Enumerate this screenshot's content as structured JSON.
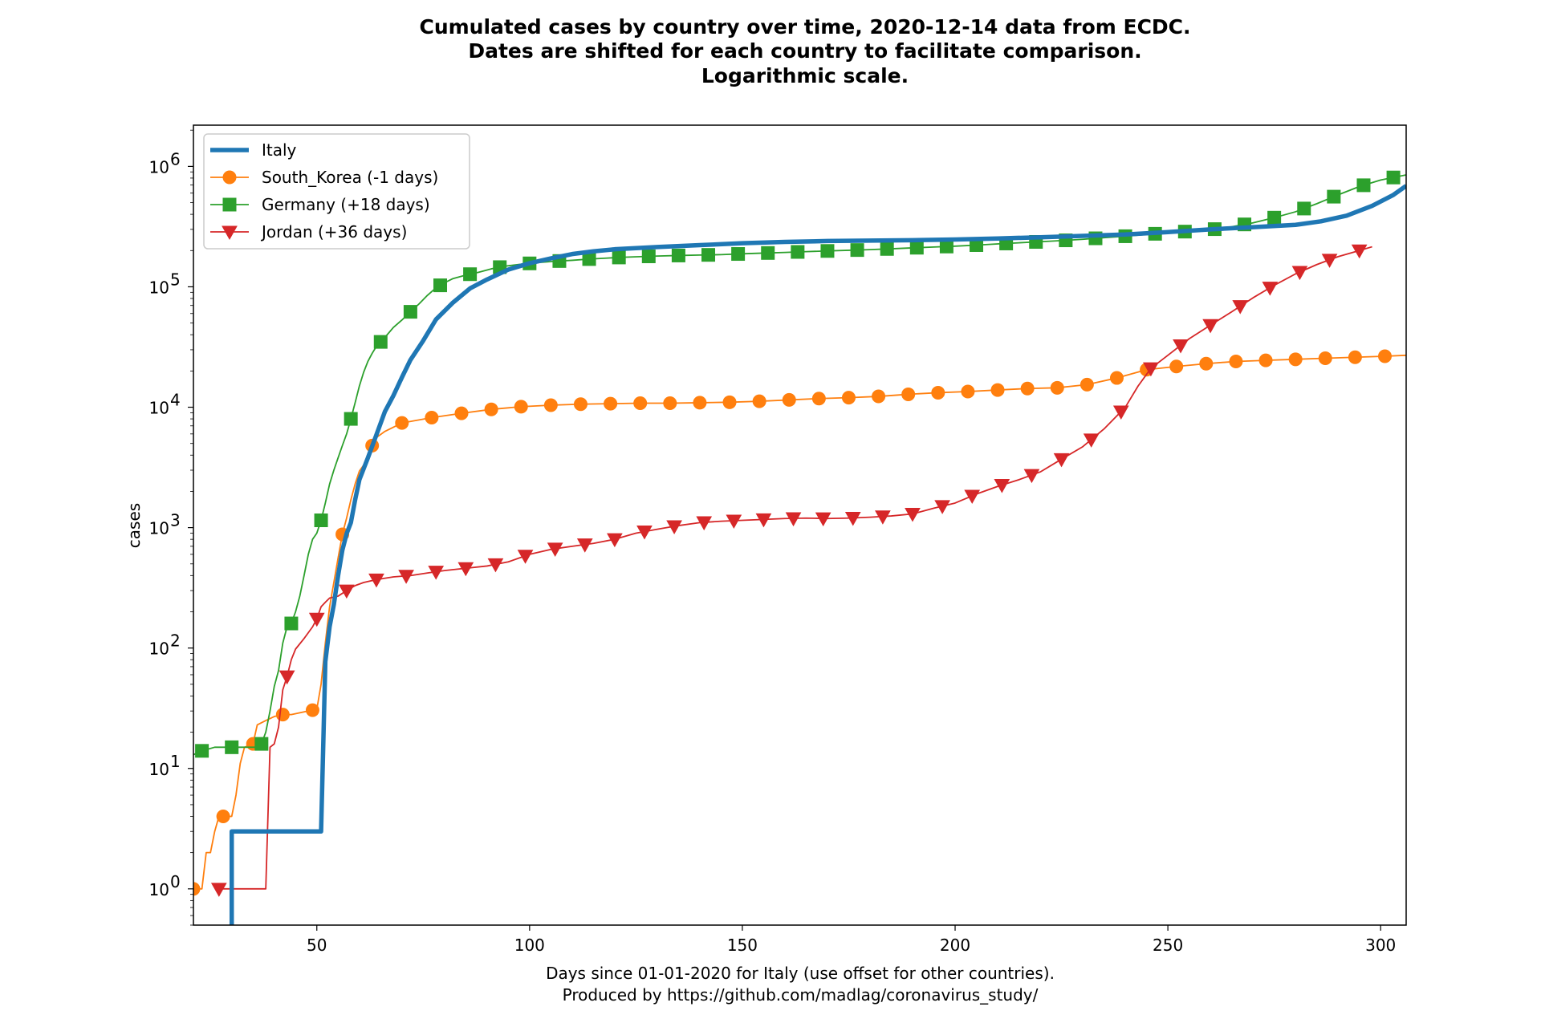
{
  "chart_data": {
    "type": "line",
    "title_lines": [
      "Cumulated cases by country over time, 2020-12-14 data from ECDC.",
      "Dates are shifted for each country to facilitate comparison.",
      "Logarithmic scale."
    ],
    "xlabel_lines": [
      "Days since 01-01-2020 for Italy (use offset for other countries).",
      "Produced by https://github.com/madlag/coronavirus_study/"
    ],
    "ylabel": "cases",
    "yscale": "log",
    "xlim": [
      21,
      306
    ],
    "ylim": [
      0.5,
      2200000
    ],
    "x_ticks": [
      50,
      100,
      150,
      200,
      250,
      300
    ],
    "x_tick_labels": [
      "50",
      "100",
      "150",
      "200",
      "250",
      "300"
    ],
    "y_ticks": [
      1,
      10,
      100,
      1000,
      10000,
      100000,
      1000000
    ],
    "y_tick_exponents": [
      "0",
      "1",
      "2",
      "3",
      "4",
      "5",
      "6"
    ],
    "y_tick_base": "10",
    "legend_position": "top-left",
    "series": [
      {
        "name": "Italy",
        "color": "#1f77b4",
        "marker": "none",
        "points": [
          [
            30,
            0.3
          ],
          [
            30,
            3
          ],
          [
            51,
            3
          ],
          [
            52,
            77
          ],
          [
            53,
            150
          ],
          [
            54,
            230
          ],
          [
            55,
            400
          ],
          [
            56,
            650
          ],
          [
            57,
            890
          ],
          [
            58,
            1100
          ],
          [
            59,
            1700
          ],
          [
            60,
            2500
          ],
          [
            62,
            3800
          ],
          [
            64,
            5900
          ],
          [
            66,
            9200
          ],
          [
            68,
            12500
          ],
          [
            70,
            17700
          ],
          [
            72,
            24700
          ],
          [
            75,
            35700
          ],
          [
            78,
            53600
          ],
          [
            82,
            74000
          ],
          [
            86,
            97000
          ],
          [
            90,
            115000
          ],
          [
            95,
            139000
          ],
          [
            100,
            157000
          ],
          [
            105,
            172000
          ],
          [
            110,
            187000
          ],
          [
            115,
            197000
          ],
          [
            120,
            205000
          ],
          [
            130,
            214000
          ],
          [
            140,
            222000
          ],
          [
            150,
            230000
          ],
          [
            160,
            236000
          ],
          [
            170,
            240000
          ],
          [
            180,
            242000
          ],
          [
            190,
            244000
          ],
          [
            200,
            247000
          ],
          [
            210,
            252000
          ],
          [
            220,
            258000
          ],
          [
            230,
            265000
          ],
          [
            240,
            272000
          ],
          [
            250,
            285000
          ],
          [
            260,
            300000
          ],
          [
            270,
            313000
          ],
          [
            280,
            327000
          ],
          [
            286,
            350000
          ],
          [
            292,
            390000
          ],
          [
            298,
            470000
          ],
          [
            303,
            580000
          ],
          [
            306,
            690000
          ]
        ]
      },
      {
        "name": "South_Korea (-1 days)",
        "color": "#ff7f0e",
        "marker": "circle",
        "points": [
          [
            21,
            1
          ],
          [
            23,
            1
          ],
          [
            24,
            2
          ],
          [
            25,
            2
          ],
          [
            26,
            3
          ],
          [
            27,
            4
          ],
          [
            29,
            4
          ],
          [
            30,
            4
          ],
          [
            31,
            6
          ],
          [
            32,
            11
          ],
          [
            33,
            15
          ],
          [
            35,
            16
          ],
          [
            36,
            23
          ],
          [
            38,
            25
          ],
          [
            40,
            27
          ],
          [
            42,
            28
          ],
          [
            44,
            28
          ],
          [
            46,
            29
          ],
          [
            48,
            30
          ],
          [
            50,
            31
          ],
          [
            51,
            50
          ],
          [
            52,
            110
          ],
          [
            53,
            220
          ],
          [
            54,
            350
          ],
          [
            55,
            560
          ],
          [
            56,
            880
          ],
          [
            57,
            1200
          ],
          [
            58,
            1700
          ],
          [
            59,
            2300
          ],
          [
            60,
            2950
          ],
          [
            62,
            3700
          ],
          [
            63,
            4800
          ],
          [
            64,
            5600
          ],
          [
            66,
            6300
          ],
          [
            70,
            7400
          ],
          [
            77,
            8200
          ],
          [
            84,
            8900
          ],
          [
            91,
            9600
          ],
          [
            98,
            10100
          ],
          [
            105,
            10400
          ],
          [
            112,
            10600
          ],
          [
            119,
            10700
          ],
          [
            126,
            10800
          ],
          [
            133,
            10800
          ],
          [
            140,
            10900
          ],
          [
            147,
            11000
          ],
          [
            154,
            11200
          ],
          [
            161,
            11500
          ],
          [
            168,
            11800
          ],
          [
            175,
            12000
          ],
          [
            182,
            12300
          ],
          [
            189,
            12800
          ],
          [
            196,
            13200
          ],
          [
            203,
            13500
          ],
          [
            210,
            13900
          ],
          [
            217,
            14300
          ],
          [
            224,
            14500
          ],
          [
            231,
            15400
          ],
          [
            238,
            17500
          ],
          [
            245,
            20500
          ],
          [
            252,
            21800
          ],
          [
            259,
            23000
          ],
          [
            266,
            24000
          ],
          [
            273,
            24500
          ],
          [
            280,
            25000
          ],
          [
            287,
            25500
          ],
          [
            294,
            26000
          ],
          [
            301,
            26500
          ],
          [
            306,
            27000
          ]
        ]
      },
      {
        "name": "Germany (+18 days)",
        "color": "#2ca02c",
        "marker": "square",
        "points": [
          [
            21,
            13
          ],
          [
            23,
            14
          ],
          [
            26,
            15
          ],
          [
            29,
            15
          ],
          [
            33,
            15
          ],
          [
            36,
            15
          ],
          [
            37,
            16
          ],
          [
            38,
            20
          ],
          [
            39,
            30
          ],
          [
            40,
            48
          ],
          [
            41,
            65
          ],
          [
            42,
            110
          ],
          [
            43,
            150
          ],
          [
            44,
            160
          ],
          [
            45,
            200
          ],
          [
            46,
            270
          ],
          [
            47,
            400
          ],
          [
            48,
            600
          ],
          [
            49,
            800
          ],
          [
            50,
            900
          ],
          [
            51,
            1150
          ],
          [
            52,
            1600
          ],
          [
            53,
            2300
          ],
          [
            54,
            3000
          ],
          [
            55,
            3800
          ],
          [
            56,
            4800
          ],
          [
            57,
            6000
          ],
          [
            58,
            8000
          ],
          [
            59,
            10900
          ],
          [
            60,
            15000
          ],
          [
            61,
            19500
          ],
          [
            62,
            24000
          ],
          [
            63,
            28000
          ],
          [
            64,
            32000
          ],
          [
            66,
            38000
          ],
          [
            68,
            46000
          ],
          [
            70,
            53000
          ],
          [
            72,
            62000
          ],
          [
            74,
            72000
          ],
          [
            76,
            85000
          ],
          [
            78,
            98000
          ],
          [
            80,
            108000
          ],
          [
            82,
            117000
          ],
          [
            85,
            125000
          ],
          [
            88,
            132000
          ],
          [
            91,
            141000
          ],
          [
            94,
            148000
          ],
          [
            98,
            154000
          ],
          [
            102,
            159000
          ],
          [
            106,
            163000
          ],
          [
            110,
            166000
          ],
          [
            114,
            170000
          ],
          [
            118,
            173000
          ],
          [
            122,
            176000
          ],
          [
            126,
            178000
          ],
          [
            130,
            180000
          ],
          [
            135,
            182000
          ],
          [
            140,
            183500
          ],
          [
            145,
            185000
          ],
          [
            150,
            188000
          ],
          [
            155,
            190500
          ],
          [
            160,
            193000
          ],
          [
            165,
            196000
          ],
          [
            170,
            198500
          ],
          [
            175,
            201000
          ],
          [
            180,
            203500
          ],
          [
            185,
            207000
          ],
          [
            190,
            210500
          ],
          [
            195,
            214000
          ],
          [
            200,
            217500
          ],
          [
            205,
            222000
          ],
          [
            210,
            227000
          ],
          [
            215,
            232000
          ],
          [
            220,
            237000
          ],
          [
            225,
            242000
          ],
          [
            230,
            248000
          ],
          [
            235,
            256000
          ],
          [
            240,
            263000
          ],
          [
            245,
            272000
          ],
          [
            250,
            281000
          ],
          [
            255,
            289000
          ],
          [
            260,
            298000
          ],
          [
            265,
            315000
          ],
          [
            270,
            340000
          ],
          [
            275,
            375000
          ],
          [
            280,
            420000
          ],
          [
            285,
            490000
          ],
          [
            290,
            580000
          ],
          [
            295,
            680000
          ],
          [
            300,
            770000
          ],
          [
            306,
            850000
          ]
        ]
      },
      {
        "name": "Jordan (+36 days)",
        "color": "#d62728",
        "marker": "triangle_down",
        "points": [
          [
            27,
            1
          ],
          [
            38,
            1
          ],
          [
            39,
            15
          ],
          [
            40,
            16
          ],
          [
            41,
            22
          ],
          [
            42,
            45
          ],
          [
            43,
            58
          ],
          [
            44,
            80
          ],
          [
            45,
            98
          ],
          [
            47,
            120
          ],
          [
            49,
            150
          ],
          [
            50,
            175
          ],
          [
            51,
            220
          ],
          [
            52,
            240
          ],
          [
            53,
            260
          ],
          [
            55,
            270
          ],
          [
            57,
            300
          ],
          [
            59,
            330
          ],
          [
            61,
            350
          ],
          [
            64,
            370
          ],
          [
            68,
            390
          ],
          [
            72,
            400
          ],
          [
            76,
            420
          ],
          [
            80,
            440
          ],
          [
            85,
            460
          ],
          [
            90,
            480
          ],
          [
            95,
            520
          ],
          [
            100,
            600
          ],
          [
            105,
            660
          ],
          [
            110,
            700
          ],
          [
            115,
            740
          ],
          [
            120,
            800
          ],
          [
            125,
            900
          ],
          [
            130,
            970
          ],
          [
            135,
            1040
          ],
          [
            140,
            1100
          ],
          [
            145,
            1130
          ],
          [
            150,
            1150
          ],
          [
            155,
            1170
          ],
          [
            160,
            1190
          ],
          [
            165,
            1200
          ],
          [
            170,
            1190
          ],
          [
            175,
            1200
          ],
          [
            180,
            1220
          ],
          [
            185,
            1250
          ],
          [
            190,
            1300
          ],
          [
            195,
            1450
          ],
          [
            200,
            1600
          ],
          [
            205,
            1900
          ],
          [
            210,
            2200
          ],
          [
            215,
            2500
          ],
          [
            220,
            2900
          ],
          [
            225,
            3700
          ],
          [
            230,
            4700
          ],
          [
            235,
            6600
          ],
          [
            240,
            10000
          ],
          [
            243,
            15000
          ],
          [
            246,
            21000
          ],
          [
            250,
            27000
          ],
          [
            255,
            37000
          ],
          [
            260,
            48000
          ],
          [
            265,
            62000
          ],
          [
            270,
            81000
          ],
          [
            275,
            103000
          ],
          [
            280,
            128000
          ],
          [
            285,
            153000
          ],
          [
            290,
            178000
          ],
          [
            295,
            200000
          ],
          [
            298,
            215000
          ]
        ]
      }
    ],
    "marker_x": {
      "Italy": [],
      "South_Korea (-1 days)": [
        21,
        28,
        35,
        42,
        49,
        56,
        63,
        70,
        77,
        84,
        91,
        98,
        105,
        112,
        119,
        126,
        133,
        140,
        147,
        154,
        161,
        168,
        175,
        182,
        189,
        196,
        203,
        210,
        217,
        224,
        231,
        238,
        245,
        252,
        259,
        266,
        273,
        280,
        287,
        294,
        301
      ],
      "Germany (+18 days)": [
        23,
        30,
        37,
        44,
        51,
        58,
        65,
        72,
        79,
        86,
        93,
        100,
        107,
        114,
        121,
        128,
        135,
        142,
        149,
        156,
        163,
        170,
        177,
        184,
        191,
        198,
        205,
        212,
        219,
        226,
        233,
        240,
        247,
        254,
        261,
        268,
        275,
        282,
        289,
        296,
        303
      ],
      "Jordan (+36 days)": [
        27,
        43,
        50,
        57,
        64,
        71,
        78,
        85,
        92,
        99,
        106,
        113,
        120,
        127,
        134,
        141,
        148,
        155,
        162,
        169,
        176,
        183,
        190,
        197,
        204,
        211,
        218,
        225,
        232,
        239,
        246,
        253,
        260,
        267,
        274,
        281,
        288,
        295
      ]
    }
  }
}
